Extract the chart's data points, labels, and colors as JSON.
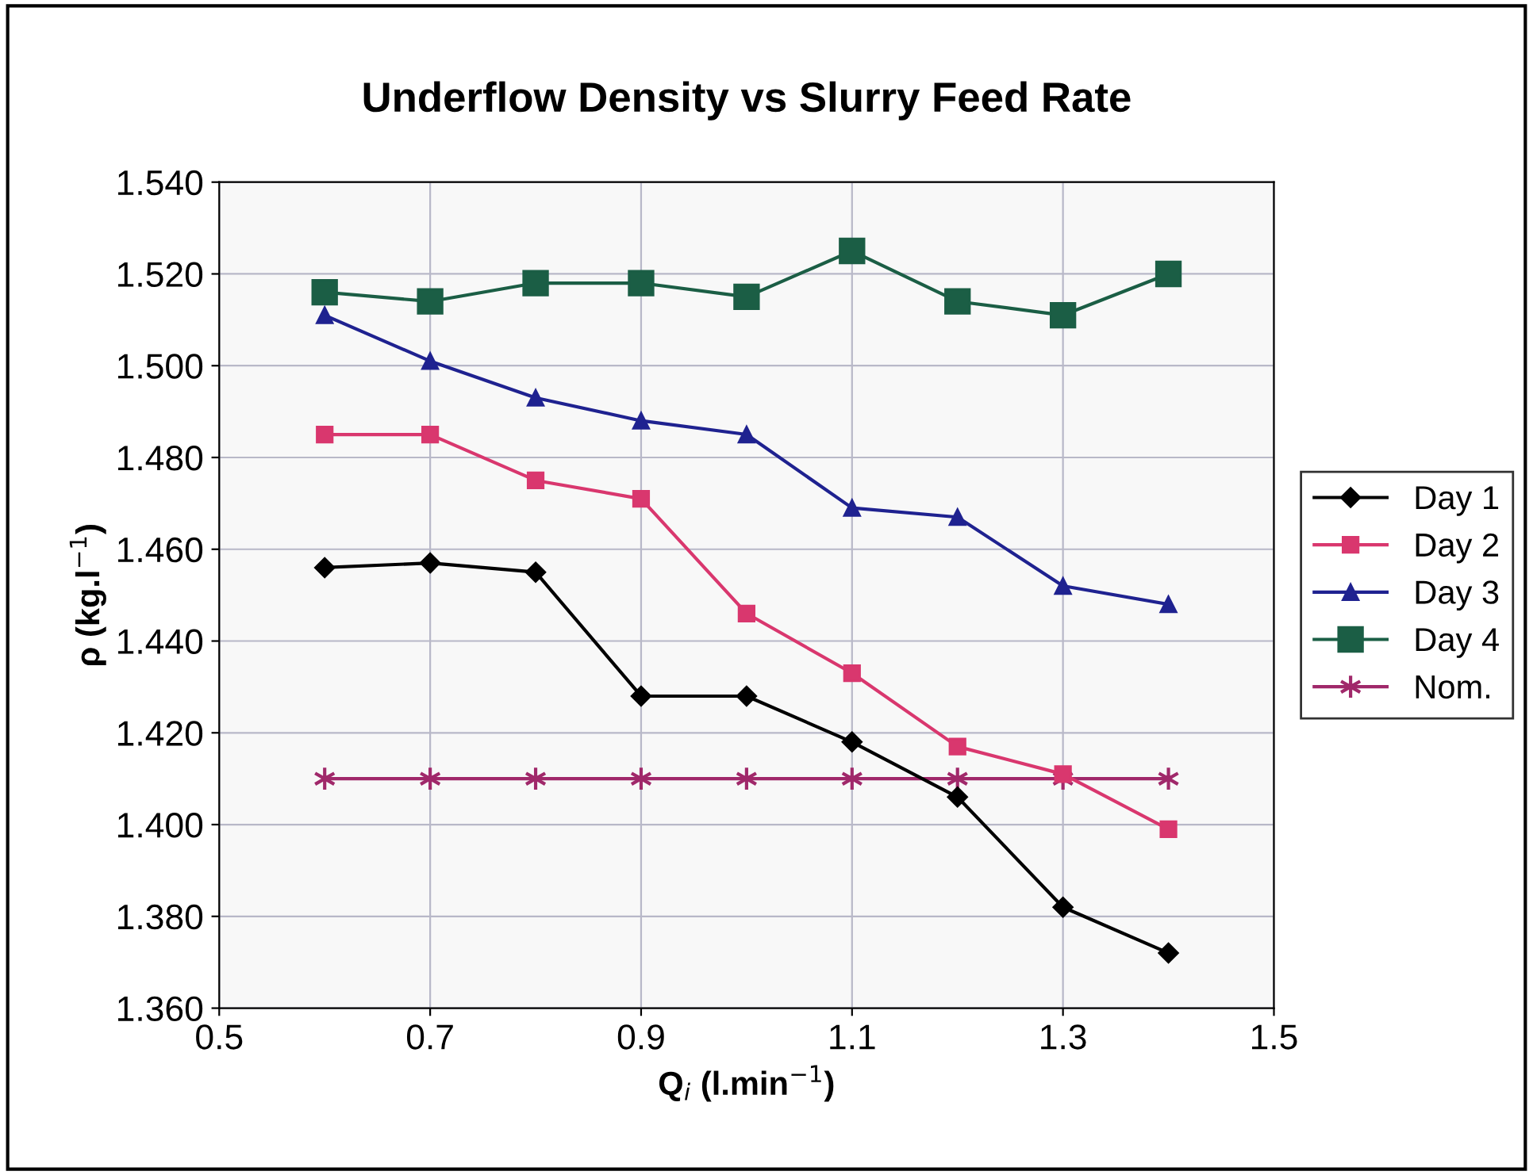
{
  "chart_data": {
    "type": "line",
    "title": "Underflow Density vs Slurry Feed Rate",
    "xlabel": "Q$_{i}$ (l.min$^{−1}$)",
    "ylabel": "ρ (kg.l$^{−1}$)",
    "x": [
      0.6,
      0.7,
      0.8,
      0.9,
      1.0,
      1.1,
      1.2,
      1.3,
      1.4
    ],
    "series": [
      {
        "name": "Day 1",
        "color": "#000000",
        "marker": "diamond",
        "values": [
          1.456,
          1.457,
          1.455,
          1.428,
          1.428,
          1.418,
          1.406,
          1.382,
          1.372
        ]
      },
      {
        "name": "Day 2",
        "color": "#d9376e",
        "marker": "square",
        "values": [
          1.485,
          1.485,
          1.475,
          1.471,
          1.446,
          1.433,
          1.417,
          1.411,
          1.399
        ]
      },
      {
        "name": "Day 3",
        "color": "#1f2290",
        "marker": "triangle",
        "values": [
          1.511,
          1.501,
          1.493,
          1.488,
          1.485,
          1.469,
          1.467,
          1.452,
          1.448
        ]
      },
      {
        "name": "Day 4",
        "color": "#1b5e45",
        "marker": "square",
        "values": [
          1.516,
          1.514,
          1.518,
          1.518,
          1.515,
          1.525,
          1.514,
          1.511,
          1.52
        ]
      },
      {
        "name": "Nom.",
        "color": "#a0286a",
        "marker": "cross",
        "values": [
          1.41,
          1.41,
          1.41,
          1.41,
          1.41,
          1.41,
          1.41,
          1.41,
          1.41
        ]
      }
    ],
    "xlim": [
      0.5,
      1.5
    ],
    "xticks": [
      0.5,
      0.7,
      0.9,
      1.1,
      1.3,
      1.5
    ],
    "ylim": [
      1.36,
      1.54
    ],
    "yticks": [
      {
        "value": 1.36,
        "label": "1.360"
      },
      {
        "value": 1.38,
        "label": "1.380"
      },
      {
        "value": 1.4,
        "label": "1.400"
      },
      {
        "value": 1.42,
        "label": "1.420"
      },
      {
        "value": 1.44,
        "label": "1.440"
      },
      {
        "value": 1.46,
        "label": "1.460"
      },
      {
        "value": 1.48,
        "label": "1.480"
      },
      {
        "value": 1.5,
        "label": "1.500"
      },
      {
        "value": 1.52,
        "label": "1.520"
      },
      {
        "value": 1.54,
        "label": "1.540"
      }
    ],
    "grid": true,
    "legend": "right",
    "line_style": "solid"
  }
}
